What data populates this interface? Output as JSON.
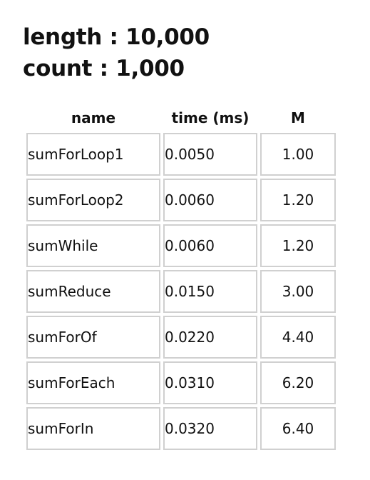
{
  "header": {
    "length_line": "length : 10,000",
    "count_line": "count : 1,000"
  },
  "table": {
    "columns": [
      "name",
      "time (ms)",
      "M"
    ],
    "rows": [
      {
        "name": "sumForLoop1",
        "time": "0.0050",
        "m": "1.00"
      },
      {
        "name": "sumForLoop2",
        "time": "0.0060",
        "m": "1.20"
      },
      {
        "name": "sumWhile",
        "time": "0.0060",
        "m": "1.20"
      },
      {
        "name": "sumReduce",
        "time": "0.0150",
        "m": "3.00"
      },
      {
        "name": "sumForOf",
        "time": "0.0220",
        "m": "4.40"
      },
      {
        "name": "sumForEach",
        "time": "0.0310",
        "m": "6.20"
      },
      {
        "name": "sumForIn",
        "time": "0.0320",
        "m": "6.40"
      }
    ]
  }
}
